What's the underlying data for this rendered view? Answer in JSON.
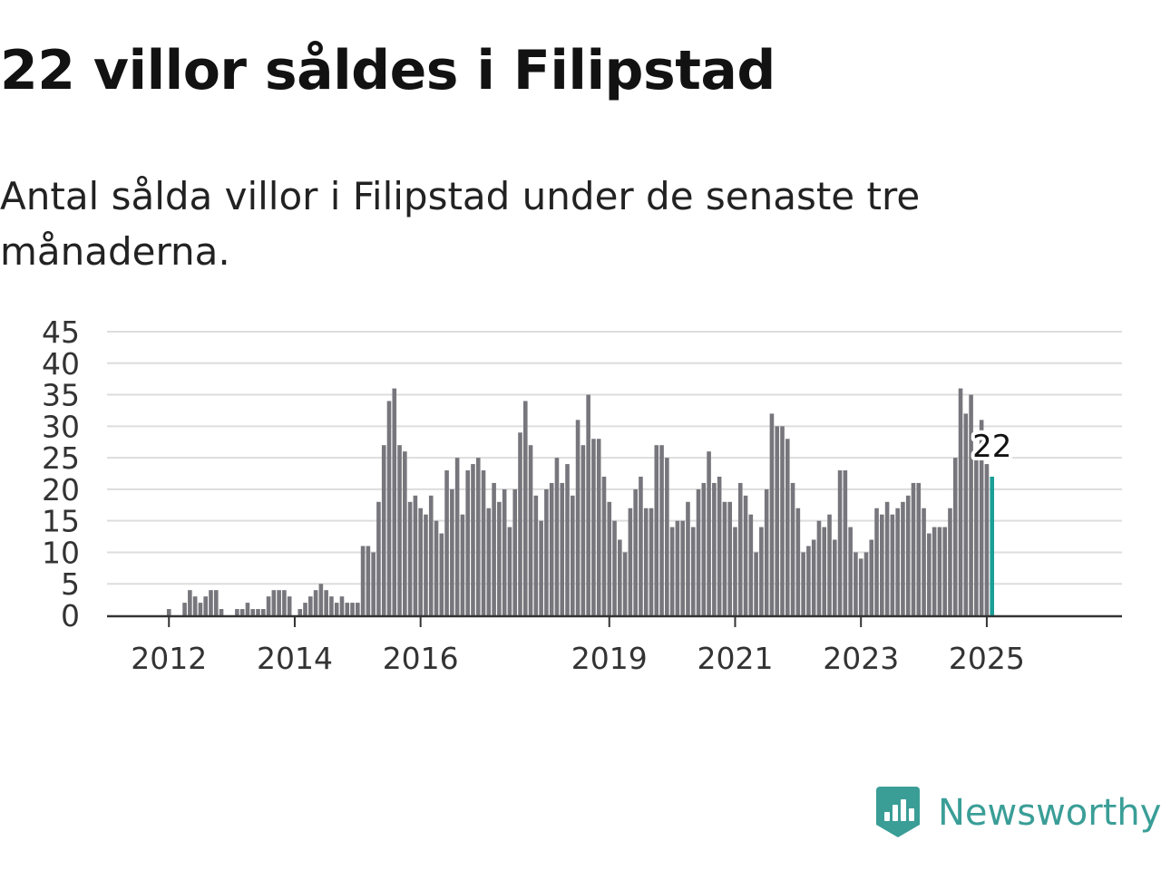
{
  "title": "22 villor såldes i Filipstad",
  "subtitle": "Antal sålda villor i Filipstad under de senaste tre månaderna.",
  "brand": {
    "name": "Newsworthy",
    "icon": "newsworthy-logo-icon",
    "color": "#3a9e97"
  },
  "colors": {
    "bar": "#77767c",
    "highlight": "#1a9e95",
    "grid": "#dddddd",
    "axis": "#333333"
  },
  "chart_data": {
    "type": "bar",
    "title": "22 villor såldes i Filipstad",
    "subtitle": "Antal sålda villor i Filipstad under de senaste tre månaderna.",
    "xlabel": "",
    "ylabel": "",
    "ylim": [
      0,
      45
    ],
    "y_ticks": [
      0,
      5,
      10,
      15,
      20,
      25,
      30,
      35,
      40,
      45
    ],
    "x_tick_labels": [
      "2012",
      "2014",
      "2016",
      "2019",
      "2021",
      "2023",
      "2025"
    ],
    "grid": true,
    "legend": "none",
    "start_period": "2011-05",
    "interval": "month",
    "highlighted_label": "22",
    "values": [
      0,
      0,
      0,
      0,
      0,
      0,
      0,
      0,
      1,
      0,
      0,
      2,
      4,
      3,
      2,
      3,
      4,
      4,
      1,
      0,
      0,
      1,
      1,
      2,
      1,
      1,
      1,
      3,
      4,
      4,
      4,
      3,
      0,
      1,
      2,
      3,
      4,
      5,
      4,
      3,
      2,
      3,
      2,
      2,
      2,
      11,
      11,
      10,
      18,
      27,
      34,
      36,
      27,
      26,
      18,
      19,
      17,
      16,
      19,
      15,
      13,
      23,
      20,
      25,
      16,
      23,
      24,
      25,
      23,
      17,
      21,
      18,
      20,
      14,
      20,
      29,
      34,
      27,
      19,
      15,
      20,
      21,
      25,
      21,
      24,
      19,
      31,
      27,
      35,
      28,
      28,
      22,
      18,
      15,
      12,
      10,
      17,
      20,
      22,
      17,
      17,
      27,
      27,
      25,
      14,
      15,
      15,
      18,
      14,
      20,
      21,
      26,
      21,
      22,
      18,
      18,
      14,
      21,
      19,
      16,
      10,
      14,
      20,
      32,
      30,
      30,
      28,
      21,
      17,
      10,
      11,
      12,
      15,
      14,
      16,
      12,
      23,
      23,
      14,
      10,
      9,
      10,
      12,
      17,
      16,
      18,
      16,
      17,
      18,
      19,
      21,
      21,
      17,
      13,
      14,
      14,
      14,
      17,
      25,
      36,
      32,
      35,
      26,
      31,
      24,
      22
    ]
  }
}
